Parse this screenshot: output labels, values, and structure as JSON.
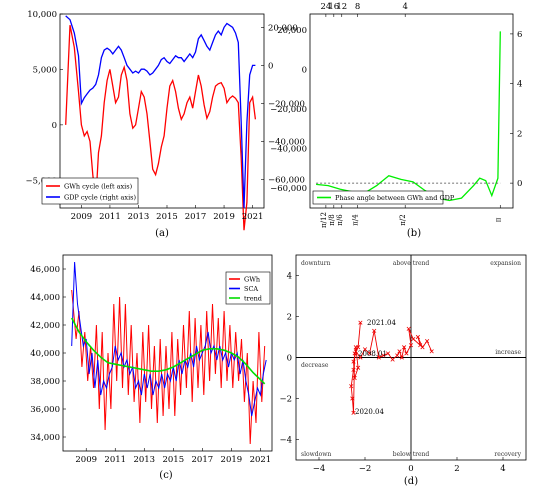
{
  "chart_data": [
    {
      "panel": "a",
      "caption": "(a)",
      "type": "line",
      "xlim": [
        2007.5,
        2021.8
      ],
      "ylim_left": [
        -7500,
        10000
      ],
      "ylim_right": [
        -75000,
        27000
      ],
      "xticks": [
        2009,
        2011,
        2013,
        2015,
        2017,
        2019,
        2021
      ],
      "yticks_left": [
        "10,000",
        "5,000",
        "0",
        "−5,000"
      ],
      "yticks_right": [
        "20,000",
        "0",
        "−20,000",
        "−40,000",
        "−60,000"
      ],
      "legend_position": "bottom-left",
      "series": [
        {
          "name": "GWh cycle (left axis)",
          "color": "#ff0000",
          "axis": "left",
          "x": [
            2007.9,
            2008.2,
            2008.5,
            2008.8,
            2009.0,
            2009.2,
            2009.4,
            2009.6,
            2009.8,
            2010.0,
            2010.2,
            2010.4,
            2010.6,
            2010.8,
            2011.0,
            2011.2,
            2011.4,
            2011.6,
            2011.8,
            2012.0,
            2012.2,
            2012.4,
            2012.6,
            2012.8,
            2013.0,
            2013.2,
            2013.4,
            2013.6,
            2013.8,
            2014.0,
            2014.2,
            2014.4,
            2014.6,
            2014.8,
            2015.0,
            2015.2,
            2015.4,
            2015.6,
            2015.8,
            2016.0,
            2016.2,
            2016.4,
            2016.6,
            2016.8,
            2017.0,
            2017.2,
            2017.4,
            2017.6,
            2017.8,
            2018.0,
            2018.2,
            2018.4,
            2018.6,
            2018.8,
            2019.0,
            2019.2,
            2019.4,
            2019.6,
            2019.8,
            2020.0,
            2020.2,
            2020.4,
            2020.6,
            2020.8,
            2021.0,
            2021.2
          ],
          "y": [
            0,
            9000,
            7000,
            3000,
            0,
            -1000,
            -600,
            -1500,
            -4500,
            -7000,
            -2500,
            -1000,
            2000,
            4000,
            5000,
            3500,
            2000,
            2500,
            4500,
            5200,
            4000,
            1000,
            -300,
            0,
            1500,
            3000,
            2500,
            1000,
            -1500,
            -4000,
            -4500,
            -3500,
            -2000,
            -1000,
            1500,
            3500,
            4000,
            3000,
            1500,
            500,
            1000,
            2000,
            2500,
            1500,
            3000,
            4500,
            3500,
            1800,
            600,
            1200,
            2500,
            3500,
            3700,
            3800,
            3300,
            2000,
            2400,
            2600,
            2400,
            2000,
            -3000,
            -9500,
            -7000,
            2000,
            2500,
            500
          ]
        },
        {
          "name": "GDP cycle (right axis)",
          "color": "#0000ff",
          "axis": "right",
          "x": [
            2007.9,
            2008.2,
            2008.5,
            2008.8,
            2009.0,
            2009.2,
            2009.4,
            2009.6,
            2009.8,
            2010.0,
            2010.2,
            2010.4,
            2010.6,
            2010.8,
            2011.0,
            2011.2,
            2011.4,
            2011.6,
            2011.8,
            2012.0,
            2012.2,
            2012.4,
            2012.6,
            2012.8,
            2013.0,
            2013.2,
            2013.4,
            2013.6,
            2013.8,
            2014.0,
            2014.2,
            2014.4,
            2014.6,
            2014.8,
            2015.0,
            2015.2,
            2015.4,
            2015.6,
            2015.8,
            2016.0,
            2016.2,
            2016.4,
            2016.6,
            2016.8,
            2017.0,
            2017.2,
            2017.4,
            2017.6,
            2017.8,
            2018.0,
            2018.2,
            2018.4,
            2018.6,
            2018.8,
            2019.0,
            2019.2,
            2019.4,
            2019.6,
            2019.8,
            2020.0,
            2020.2,
            2020.4,
            2020.6,
            2020.8,
            2021.0,
            2021.2
          ],
          "y": [
            26000,
            24000,
            17000,
            5000,
            -20000,
            -17000,
            -15000,
            -13000,
            -12000,
            -10000,
            -5000,
            4000,
            8000,
            9000,
            8000,
            6000,
            8000,
            10000,
            8000,
            4000,
            0,
            -2000,
            -4000,
            -3000,
            -4000,
            -2000,
            -2000,
            -3000,
            -5000,
            -4000,
            -2000,
            0,
            3000,
            4000,
            2000,
            1000,
            3000,
            5000,
            4000,
            4000,
            2000,
            4000,
            6000,
            4000,
            7000,
            14000,
            16000,
            13000,
            10000,
            8000,
            12000,
            16000,
            18000,
            16000,
            20000,
            22000,
            21000,
            20000,
            17000,
            12000,
            -30000,
            -75000,
            -30000,
            -5000,
            0,
            0
          ]
        }
      ]
    },
    {
      "panel": "b",
      "caption": "(b)",
      "type": "line",
      "xlim": [
        0,
        3.35
      ],
      "ylim_left": [
        -70000,
        28000
      ],
      "ylim_right": [
        -1.0,
        6.8
      ],
      "top_ticks": [
        "24",
        "16",
        "12",
        "8",
        "4"
      ],
      "top_tick_positions": [
        0.262,
        0.393,
        0.524,
        0.785,
        1.571
      ],
      "bottom_ticks": [
        "π/12",
        "π/8",
        "π/6",
        "π/4",
        "π/2",
        "π"
      ],
      "bottom_tick_positions": [
        0.262,
        0.393,
        0.524,
        0.785,
        1.571,
        3.14
      ],
      "yticks_left": [
        "20,000",
        "0",
        "−20,000",
        "−40,000",
        "−60,000"
      ],
      "yticks_right": [
        "6",
        "4",
        "2",
        "0"
      ],
      "legend_position": "bottom-left",
      "series": [
        {
          "name": "Phase angle between GWh and GDP",
          "color": "#00ee00",
          "x": [
            0.1,
            0.3,
            0.5,
            0.7,
            0.9,
            1.1,
            1.3,
            1.5,
            1.7,
            1.9,
            2.1,
            2.3,
            2.5,
            2.7,
            2.8,
            2.9,
            3.0,
            3.1,
            3.14
          ],
          "y": [
            -0.05,
            -0.1,
            -0.25,
            -0.35,
            -0.4,
            -0.1,
            0.3,
            0.15,
            0.05,
            -0.3,
            -0.6,
            -0.7,
            -0.6,
            -0.1,
            0.2,
            0.1,
            -0.5,
            0.2,
            6.1
          ]
        },
        {
          "name": "",
          "color": "#444444",
          "dashed": true,
          "x": [
            0.1,
            3.14
          ],
          "y": [
            0,
            0
          ]
        }
      ]
    },
    {
      "panel": "c",
      "caption": "(c)",
      "type": "line",
      "xlim": [
        2007.4,
        2021.8
      ],
      "ylim": [
        33000,
        47000
      ],
      "xticks": [
        2009,
        2011,
        2013,
        2015,
        2017,
        2019,
        2021
      ],
      "yticks": [
        "46,000",
        "44,000",
        "42,000",
        "40,000",
        "38,000",
        "36,000",
        "34,000"
      ],
      "legend_position": "top-right",
      "series": [
        {
          "name": "GWh",
          "color": "#ff0000",
          "x": [
            2008.0,
            2008.3,
            2008.5,
            2008.7,
            2008.9,
            2009.1,
            2009.3,
            2009.5,
            2009.7,
            2009.9,
            2010.1,
            2010.3,
            2010.5,
            2010.7,
            2010.9,
            2011.1,
            2011.3,
            2011.5,
            2011.7,
            2011.9,
            2012.1,
            2012.3,
            2012.5,
            2012.7,
            2012.9,
            2013.1,
            2013.3,
            2013.5,
            2013.7,
            2013.9,
            2014.1,
            2014.3,
            2014.5,
            2014.7,
            2014.9,
            2015.1,
            2015.3,
            2015.5,
            2015.7,
            2015.9,
            2016.1,
            2016.3,
            2016.5,
            2016.7,
            2016.9,
            2017.1,
            2017.3,
            2017.5,
            2017.7,
            2017.9,
            2018.1,
            2018.3,
            2018.5,
            2018.7,
            2018.9,
            2019.1,
            2019.3,
            2019.5,
            2019.7,
            2019.9,
            2020.1,
            2020.3,
            2020.5,
            2020.7,
            2020.9,
            2021.1,
            2021.3
          ],
          "y": [
            44500,
            41000,
            43000,
            39000,
            41500,
            38000,
            40500,
            37500,
            42000,
            36000,
            41500,
            34500,
            40000,
            36000,
            43500,
            38000,
            44000,
            37500,
            43500,
            37000,
            42000,
            36500,
            40000,
            35000,
            41500,
            36500,
            42000,
            36000,
            40500,
            35000,
            41000,
            35500,
            40500,
            36000,
            41500,
            35500,
            41000,
            37000,
            42000,
            37500,
            43000,
            36500,
            42500,
            37500,
            42000,
            37000,
            43000,
            38000,
            43500,
            38500,
            42500,
            37500,
            43000,
            38000,
            42000,
            37500,
            41500,
            38000,
            41000,
            36500,
            40000,
            33500,
            38000,
            35000,
            41500,
            36500,
            40500
          ]
        },
        {
          "name": "SCA",
          "color": "#0000ff",
          "x": [
            2008.0,
            2008.2,
            2008.4,
            2008.6,
            2008.8,
            2009.0,
            2009.2,
            2009.4,
            2009.6,
            2009.8,
            2010.0,
            2010.2,
            2010.4,
            2010.6,
            2010.8,
            2011.0,
            2011.2,
            2011.4,
            2011.6,
            2011.8,
            2012.0,
            2012.2,
            2012.4,
            2012.6,
            2012.8,
            2013.0,
            2013.2,
            2013.4,
            2013.6,
            2013.8,
            2014.0,
            2014.2,
            2014.4,
            2014.6,
            2014.8,
            2015.0,
            2015.2,
            2015.4,
            2015.6,
            2015.8,
            2016.0,
            2016.2,
            2016.4,
            2016.6,
            2016.8,
            2017.0,
            2017.2,
            2017.4,
            2017.6,
            2017.8,
            2018.0,
            2018.2,
            2018.4,
            2018.6,
            2018.8,
            2019.0,
            2019.2,
            2019.4,
            2019.6,
            2019.8,
            2020.0,
            2020.2,
            2020.4,
            2020.6,
            2020.8,
            2021.0,
            2021.2,
            2021.4
          ],
          "y": [
            40500,
            46500,
            43500,
            42000,
            40500,
            41000,
            38500,
            40000,
            37500,
            39500,
            37000,
            38000,
            37500,
            38500,
            39000,
            40500,
            39500,
            40000,
            39000,
            39500,
            38500,
            39000,
            37500,
            38000,
            37000,
            38500,
            37500,
            38500,
            37000,
            38000,
            37500,
            38500,
            37500,
            38500,
            38000,
            39000,
            38000,
            39500,
            38500,
            39500,
            39000,
            40000,
            39000,
            40500,
            39500,
            40000,
            40500,
            41500,
            40000,
            40500,
            39500,
            40500,
            39500,
            40000,
            39000,
            40000,
            39500,
            40000,
            38500,
            39500,
            38000,
            37000,
            35500,
            36500,
            37500,
            37000,
            38500,
            39500
          ]
        },
        {
          "name": "trend",
          "color": "#00dd00",
          "x": [
            2008.0,
            2008.5,
            2009.0,
            2009.5,
            2010.0,
            2010.5,
            2011.0,
            2011.5,
            2012.0,
            2012.5,
            2013.0,
            2013.5,
            2014.0,
            2014.5,
            2015.0,
            2015.5,
            2016.0,
            2016.5,
            2017.0,
            2017.5,
            2018.0,
            2018.5,
            2019.0,
            2019.5,
            2020.0,
            2020.5,
            2021.0,
            2021.3
          ],
          "y": [
            42500,
            41500,
            40800,
            40200,
            39700,
            39300,
            39200,
            39100,
            39000,
            38900,
            38800,
            38700,
            38700,
            38800,
            39000,
            39300,
            39600,
            39900,
            40200,
            40300,
            40300,
            40200,
            40000,
            39700,
            39200,
            38600,
            38100,
            37800
          ]
        }
      ]
    },
    {
      "panel": "d",
      "caption": "(d)",
      "type": "line",
      "xlim": [
        -5,
        5
      ],
      "ylim": [
        -5,
        5
      ],
      "xticks": [
        "−4",
        "−2",
        "0",
        "2",
        "4"
      ],
      "yticks": [
        "4",
        "2",
        "0",
        "−2",
        "−4"
      ],
      "quadrant_labels": {
        "top_left": "downturn",
        "top_center": "above trend",
        "top_right": "expansion",
        "mid_left": "decrease",
        "mid_right": "increase",
        "bottom_left": "slowdown",
        "bottom_center": "below trend",
        "bottom_right": "recovery"
      },
      "annotations": [
        "2021.04",
        "2008.01",
        "2020.04"
      ],
      "series": [
        {
          "name": "",
          "color": "#ee0000",
          "marker": "x",
          "x": [
            0.9,
            0.7,
            0.5,
            0.3,
            0.4,
            0.1,
            -0.1,
            0.0,
            -0.2,
            -0.3,
            -0.4,
            -0.5,
            -0.6,
            -0.8,
            -1.0,
            -1.2,
            -1.4,
            -1.6,
            -1.8,
            -2.0,
            -2.2,
            -2.4,
            -2.5,
            -2.45,
            -2.3,
            -2.4,
            -2.5,
            -2.6,
            -2.55,
            -2.5,
            -2.45,
            -2.3,
            -2.2
          ],
          "y": [
            0.3,
            0.8,
            0.5,
            1.0,
            0.6,
            0.9,
            1.4,
            0.6,
            0.2,
            0.5,
            0.0,
            0.3,
            0.1,
            -0.1,
            0.2,
            0.1,
            0.0,
            1.3,
            0.2,
            0.4,
            0.0,
            0.3,
            -0.2,
            -1.0,
            -0.5,
            0.5,
            -0.6,
            -1.4,
            -2.0,
            -2.7,
            0.2,
            0.5,
            1.7
          ]
        }
      ]
    }
  ]
}
